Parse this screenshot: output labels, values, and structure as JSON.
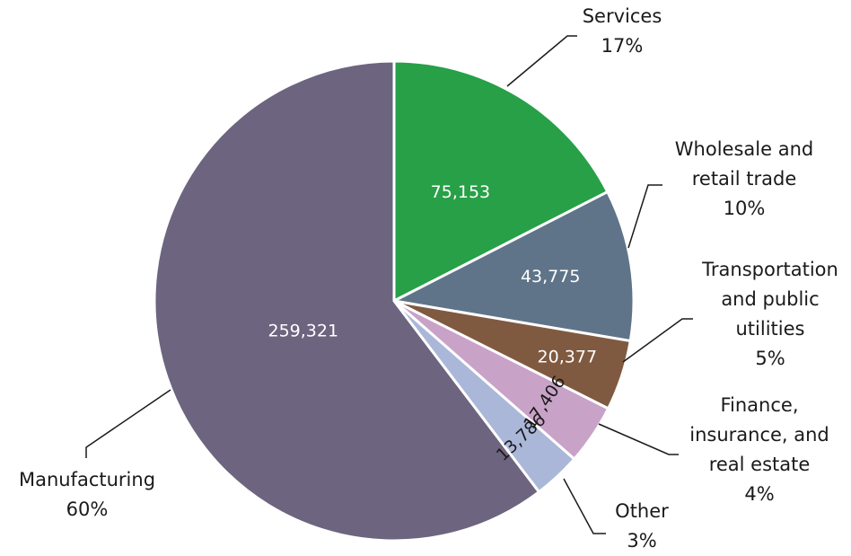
{
  "chart_data": {
    "type": "pie",
    "slices": [
      {
        "name": "Services",
        "value": 75153,
        "value_label": "75,153",
        "percent": 17,
        "percent_label": "17%",
        "color": "#27a048"
      },
      {
        "name": "Wholesale and retail trade",
        "value": 43775,
        "value_label": "43,775",
        "percent": 10,
        "percent_label": "10%",
        "color": "#5f7489"
      },
      {
        "name": "Transportation and public utilities",
        "value": 20377,
        "value_label": "20,377",
        "percent": 5,
        "percent_label": "5%",
        "color": "#7f5a41"
      },
      {
        "name": "Finance, insurance, and real estate",
        "value": 17406,
        "value_label": "17,406",
        "percent": 4,
        "percent_label": "4%",
        "color": "#c9a2c8"
      },
      {
        "name": "Other",
        "value": 13786,
        "value_label": "13,786",
        "percent": 3,
        "percent_label": "3%",
        "color": "#abb7d9"
      },
      {
        "name": "Manufacturing",
        "value": 259321,
        "value_label": "259,321",
        "percent": 60,
        "percent_label": "60%",
        "color": "#6d647f"
      }
    ],
    "start_angle": "top, clockwise",
    "legend": "callouts with leader lines"
  },
  "callouts": {
    "services": [
      "Services",
      "17%"
    ],
    "wholesale": [
      "Wholesale and",
      "retail trade",
      "10%"
    ],
    "transportation": [
      "Transportation",
      "and public",
      "utilities",
      "5%"
    ],
    "finance": [
      "Finance,",
      "insurance, and",
      "real estate",
      "4%"
    ],
    "other": [
      "Other",
      "3%"
    ],
    "manufacturing": [
      "Manufacturing",
      "60%"
    ]
  }
}
